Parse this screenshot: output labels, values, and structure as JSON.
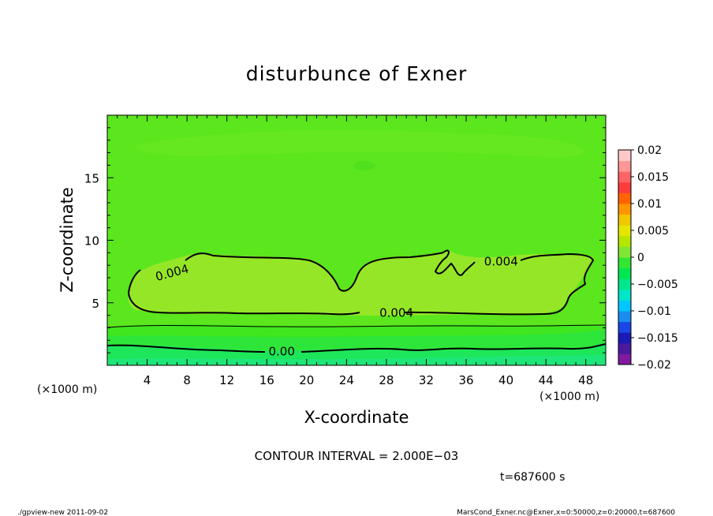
{
  "chart_data": {
    "type": "heatmap",
    "title": "disturbunce of Exner",
    "xlabel": "X-coordinate",
    "ylabel": "Z-coordinate",
    "x_unit_left": "(×1000 m)",
    "x_unit_right": "(×1000 m)",
    "xlim": [
      0,
      50
    ],
    "ylim": [
      0,
      20
    ],
    "x_ticks": [
      "4",
      "8",
      "12",
      "16",
      "20",
      "24",
      "28",
      "32",
      "36",
      "40",
      "44",
      "48"
    ],
    "y_ticks": [
      "5",
      "10",
      "15"
    ],
    "colorbar": {
      "ticks": [
        "0.02",
        "0.015",
        "0.01",
        "0.005",
        "0",
        "−0.005",
        "−0.01",
        "−0.015",
        "−0.02"
      ],
      "range": [
        -0.02,
        0.02
      ],
      "colors": [
        "#7f1a9e",
        "#4b1a9e",
        "#1a1ab4",
        "#1a46e6",
        "#1a8cf0",
        "#00c8ff",
        "#00e6c8",
        "#00e68c",
        "#00e650",
        "#33e633",
        "#80e633",
        "#b4e600",
        "#e6e600",
        "#f0c800",
        "#ff9600",
        "#ff6400",
        "#ff3c3c",
        "#ff6464",
        "#ff9696",
        "#ffc8c8"
      ]
    },
    "contour_labels": [
      {
        "text": "0.004",
        "x": 6.5,
        "z": 7.4
      },
      {
        "text": "0.004",
        "x": 39.5,
        "z": 8.3
      },
      {
        "text": "0.004",
        "x": 29.0,
        "z": 4.2
      },
      {
        "text": "0.00",
        "x": 17.5,
        "z": 1.1
      }
    ],
    "contour_interval": "CONTOUR INTERVAL = 2.000E−03",
    "time": "t=687600 s"
  },
  "footer": {
    "left": "./gpview-new   2011-09-02",
    "right": "MarsCond_Exner.nc@Exner,x=0:50000,z=0:20000,t=687600"
  }
}
